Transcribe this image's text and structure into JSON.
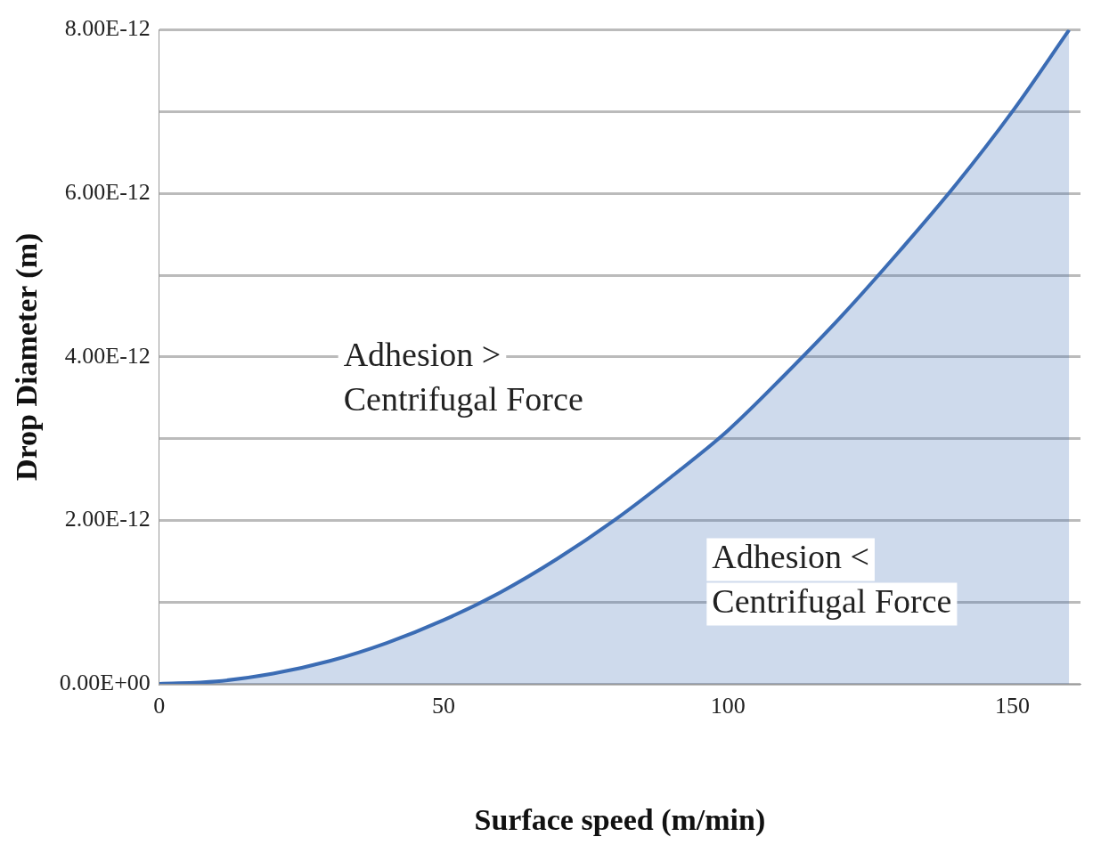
{
  "chart_data": {
    "type": "area",
    "xlabel": "Surface speed (m/min)",
    "ylabel": "Drop Diameter (m)",
    "x": [
      0,
      10,
      20,
      30,
      40,
      50,
      60,
      70,
      80,
      90,
      100,
      110,
      120,
      130,
      140,
      150,
      160
    ],
    "series": [
      {
        "color": "#3b6cb4",
        "values": [
          0,
          3e-14,
          1.25e-13,
          2.8e-13,
          5e-13,
          7.8e-13,
          1.12e-12,
          1.53e-12,
          2e-12,
          2.53e-12,
          3.1e-12,
          3.78e-12,
          4.5e-12,
          5.28e-12,
          6.1e-12,
          7e-12,
          8e-12
        ]
      }
    ],
    "xlim": [
      0,
      162
    ],
    "xticks": [
      0,
      50,
      100,
      150
    ],
    "ylim": [
      0,
      8e-12
    ],
    "yticks": [
      {
        "value": 0,
        "label": "0.00E+00"
      },
      {
        "value": 1e-12,
        "label": null
      },
      {
        "value": 2e-12,
        "label": "2.00E-12"
      },
      {
        "value": 3e-12,
        "label": null
      },
      {
        "value": 4e-12,
        "label": "4.00E-12"
      },
      {
        "value": 5e-12,
        "label": null
      },
      {
        "value": 6e-12,
        "label": "6.00E-12"
      },
      {
        "value": 7e-12,
        "label": null
      },
      {
        "value": 8e-12,
        "label": "8.00E-12"
      }
    ],
    "grid": "y",
    "legend": false,
    "annotations": [
      "Adhesion >\nCentrifugal Force",
      "Adhesion <\nCentrifugal Force"
    ]
  }
}
